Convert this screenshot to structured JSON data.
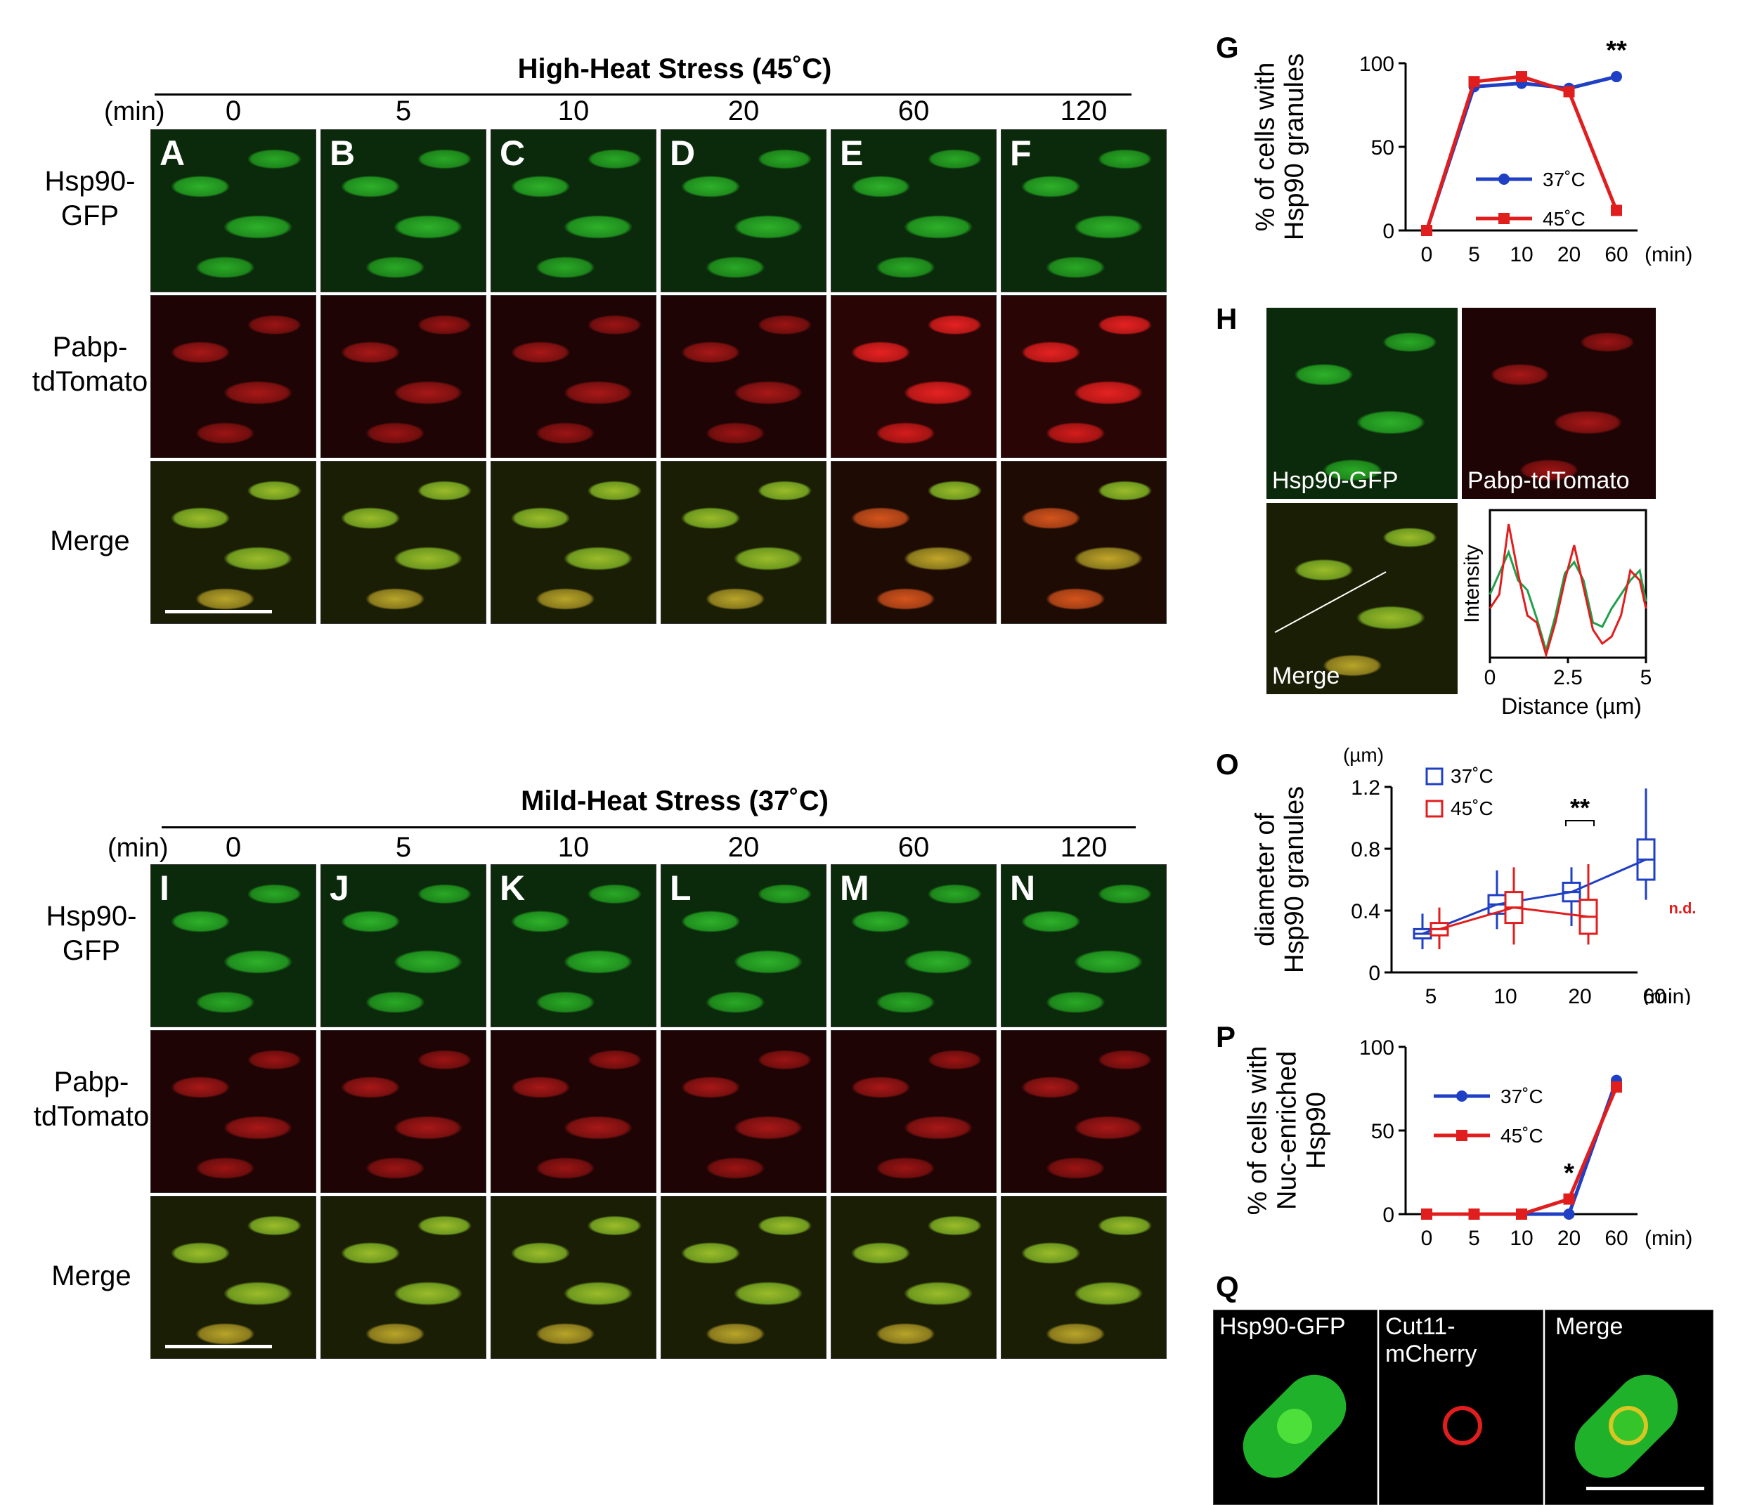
{
  "top": {
    "title": "High-Heat Stress (45˚C)",
    "min_label": "(min)",
    "times": [
      "0",
      "5",
      "10",
      "20",
      "60",
      "120"
    ],
    "row_labels": [
      "Hsp90-\nGFP",
      "Pabp-\ntdTomato",
      "Merge"
    ],
    "letters": [
      "A",
      "B",
      "C",
      "D",
      "E",
      "F"
    ]
  },
  "bottom": {
    "title": "Mild-Heat Stress (37˚C)",
    "min_label": "(min)",
    "times": [
      "0",
      "5",
      "10",
      "20",
      "60",
      "120"
    ],
    "row_labels": [
      "Hsp90-\nGFP",
      "Pabp-\ntdTomato",
      "Merge"
    ],
    "letters": [
      "I",
      "J",
      "K",
      "L",
      "M",
      "N"
    ]
  },
  "panel_G": {
    "letter": "G",
    "ylabel": "% of cells with\nHsp90 granules",
    "asterisks": "**",
    "chart_data": {
      "type": "line",
      "categories": [
        "0",
        "5",
        "10",
        "20",
        "60"
      ],
      "xunit": "(min)",
      "ylim": [
        0,
        100
      ],
      "yticks": [
        "0",
        "50",
        "100"
      ],
      "series": [
        {
          "name": "37˚C",
          "color": "#1f3fc4",
          "values": [
            0,
            86,
            88,
            85,
            92
          ]
        },
        {
          "name": "45˚C",
          "color": "#e01e1e",
          "values": [
            0,
            89,
            92,
            83,
            12
          ]
        }
      ]
    }
  },
  "panel_H": {
    "letter": "H",
    "labels": [
      "Hsp90-GFP",
      "Pabp-tdTomato",
      "Merge"
    ],
    "chart_data": {
      "type": "line",
      "ylabel": "Intensity",
      "xlabel": "Distance (µm)",
      "xticks": [
        "0",
        "2.5",
        "5"
      ],
      "xlim": [
        0,
        5
      ],
      "series": [
        {
          "color": "#1fa04a",
          "x": [
            0,
            0.3,
            0.6,
            0.9,
            1.2,
            1.5,
            1.8,
            2.1,
            2.4,
            2.7,
            3.0,
            3.3,
            3.6,
            3.9,
            4.2,
            4.5,
            4.8,
            5.0
          ],
          "values": [
            0.45,
            0.6,
            0.75,
            0.55,
            0.48,
            0.28,
            0.05,
            0.3,
            0.6,
            0.68,
            0.55,
            0.25,
            0.22,
            0.35,
            0.45,
            0.55,
            0.62,
            0.4
          ]
        },
        {
          "color": "#e01e1e",
          "x": [
            0,
            0.3,
            0.6,
            0.9,
            1.2,
            1.5,
            1.8,
            2.1,
            2.4,
            2.7,
            3.0,
            3.3,
            3.6,
            3.9,
            4.2,
            4.5,
            4.8,
            5.0
          ],
          "values": [
            0.35,
            0.45,
            0.95,
            0.6,
            0.3,
            0.25,
            0.02,
            0.25,
            0.55,
            0.8,
            0.5,
            0.2,
            0.1,
            0.15,
            0.3,
            0.62,
            0.55,
            0.35
          ]
        }
      ]
    }
  },
  "panel_O": {
    "letter": "O",
    "yunit": "(µm)",
    "ylabel": "diameter of\nHsp90 granules",
    "asterisks": "**",
    "nd": "n.d.",
    "chart_data": {
      "type": "box",
      "categories": [
        "5",
        "10",
        "20",
        "60"
      ],
      "xunit": "(min)",
      "ylim": [
        0,
        1.2
      ],
      "yticks": [
        "0",
        "0.4",
        "0.8",
        "1.2"
      ],
      "series": [
        {
          "name": "37˚C",
          "color": "#1f3fc4",
          "boxes": [
            [
              0.15,
              0.22,
              0.25,
              0.28,
              0.38
            ],
            [
              0.28,
              0.38,
              0.44,
              0.5,
              0.66
            ],
            [
              0.3,
              0.46,
              0.52,
              0.58,
              0.68
            ],
            [
              0.47,
              0.6,
              0.73,
              0.86,
              1.19
            ]
          ]
        },
        {
          "name": "45˚C",
          "color": "#e01e1e",
          "boxes": [
            [
              0.15,
              0.24,
              0.28,
              0.32,
              0.42
            ],
            [
              0.18,
              0.32,
              0.42,
              0.52,
              0.68
            ],
            [
              0.18,
              0.25,
              0.36,
              0.47,
              0.7
            ],
            null
          ]
        }
      ]
    }
  },
  "panel_P": {
    "letter": "P",
    "ylabel": "% of cells with\nNuc-enriched\nHsp90",
    "asterisk": "*",
    "chart_data": {
      "type": "line",
      "categories": [
        "0",
        "5",
        "10",
        "20",
        "60"
      ],
      "xunit": "(min)",
      "ylim": [
        0,
        100
      ],
      "yticks": [
        "0",
        "50",
        "100"
      ],
      "series": [
        {
          "name": "37˚C",
          "color": "#1f3fc4",
          "values": [
            0,
            0,
            0,
            0,
            80
          ]
        },
        {
          "name": "45˚C",
          "color": "#e01e1e",
          "values": [
            0,
            0,
            0,
            9,
            76
          ]
        }
      ]
    }
  },
  "panel_Q": {
    "letter": "Q",
    "labels": [
      "Hsp90-GFP",
      "Cut11-\nmCherry",
      "Merge"
    ]
  }
}
